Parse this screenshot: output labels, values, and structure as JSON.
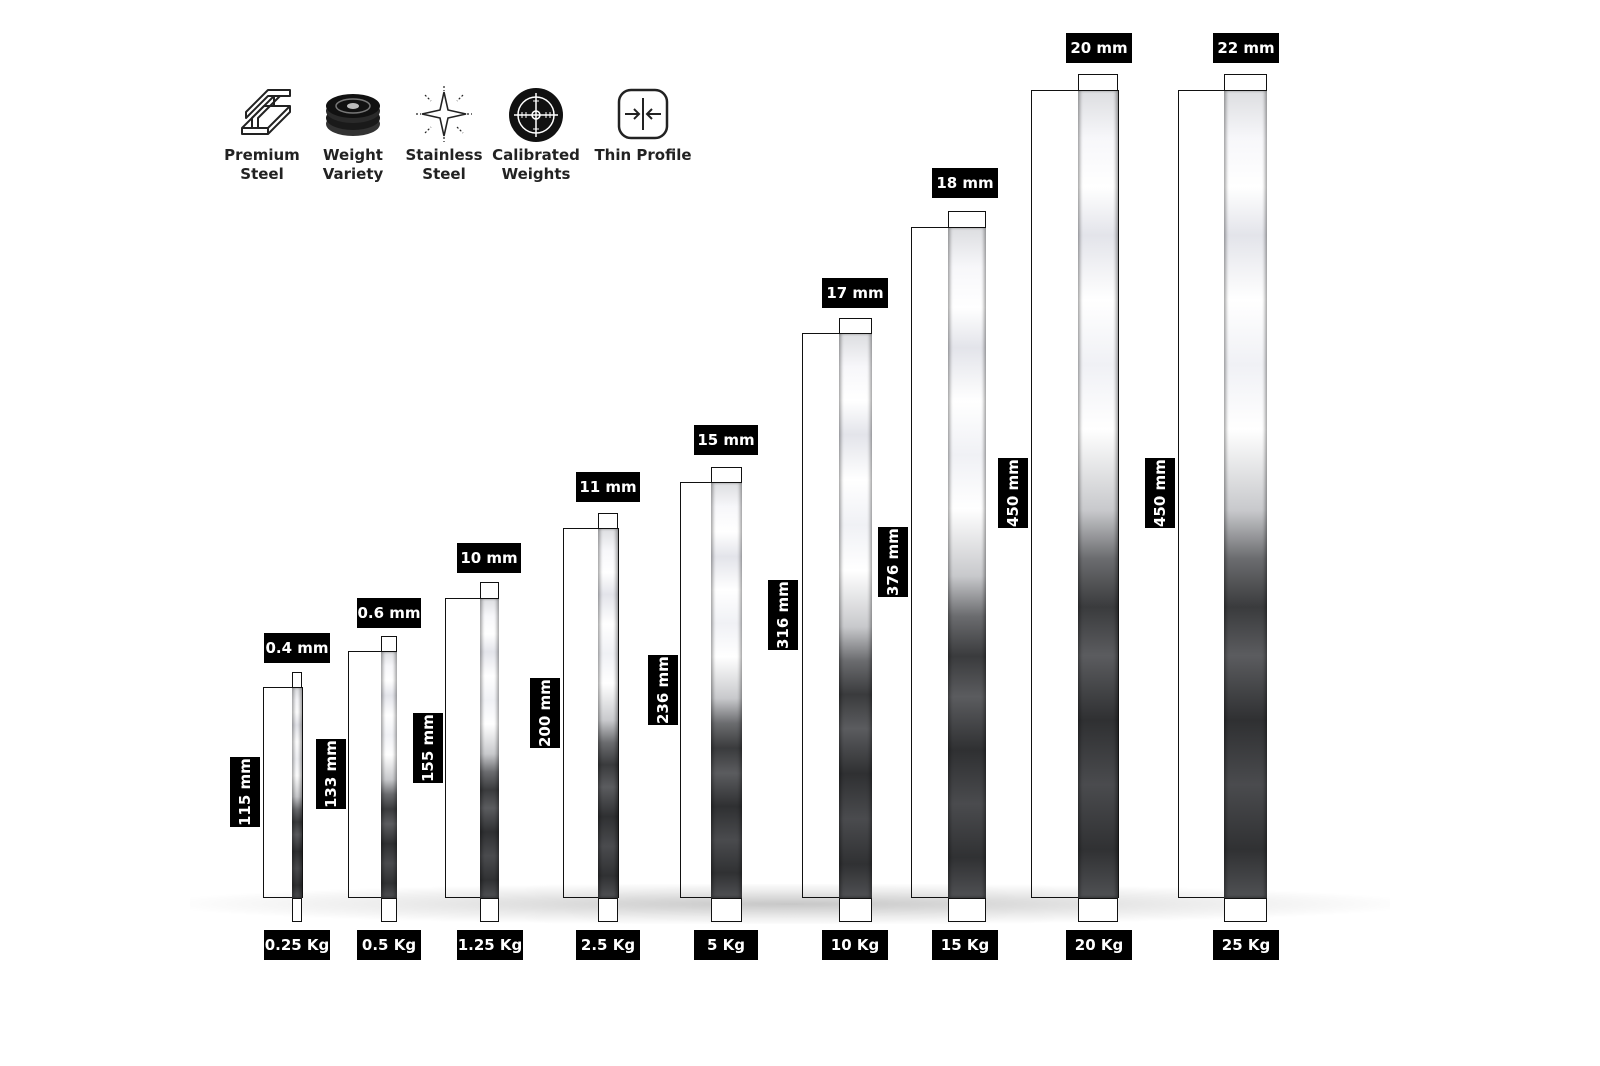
{
  "features": [
    {
      "label": "Premium\nSteel",
      "icon": "steel-beam-icon"
    },
    {
      "label": "Weight\nVariety",
      "icon": "weight-plates-icon"
    },
    {
      "label": "Stainless\nSteel",
      "icon": "sparkle-icon"
    },
    {
      "label": "Calibrated\nWeights",
      "icon": "target-icon"
    },
    {
      "label": "Thin Profile",
      "icon": "compress-arrows-icon"
    }
  ],
  "plates": [
    {
      "weight": "0.25 Kg",
      "thickness": "0.4 mm",
      "diameter": "115 mm"
    },
    {
      "weight": "0.5 Kg",
      "thickness": "0.6 mm",
      "diameter": "133 mm"
    },
    {
      "weight": "1.25 Kg",
      "thickness": "10 mm",
      "diameter": "155 mm"
    },
    {
      "weight": "2.5 Kg",
      "thickness": "11 mm",
      "diameter": "200 mm"
    },
    {
      "weight": "5 Kg",
      "thickness": "15 mm",
      "diameter": "236 mm"
    },
    {
      "weight": "10 Kg",
      "thickness": "17 mm",
      "diameter": "316 mm"
    },
    {
      "weight": "15 Kg",
      "thickness": "18 mm",
      "diameter": "376 mm"
    },
    {
      "weight": "20 Kg",
      "thickness": "20 mm",
      "diameter": "450 mm"
    },
    {
      "weight": "25 Kg",
      "thickness": "22 mm",
      "diameter": "450 mm"
    }
  ]
}
